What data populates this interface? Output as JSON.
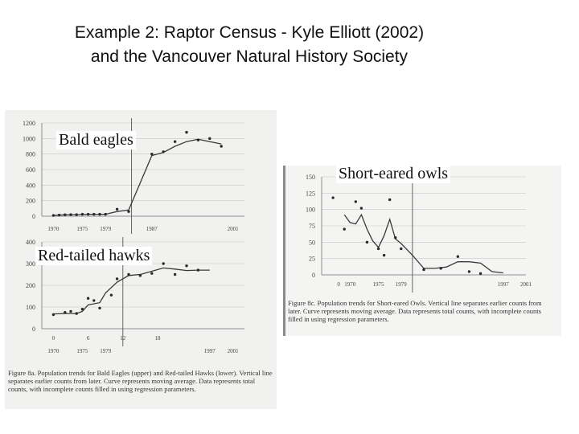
{
  "slide": {
    "title_line1": "Example 2: Raptor Census - Kyle Elliott (2002)",
    "title_line2": "and the Vancouver Natural History Society"
  },
  "labels": {
    "bald_eagles": "Bald eagles",
    "red_tailed_hawks": "Red-tailed hawks",
    "short_eared_owls": "Short-eared owls"
  },
  "captions": {
    "figure_8a": "Figure 8a. Population trends for Bald Eagles (upper) and Red-tailed Hawks (lower). Vertical line separates earlier counts from later. Curve represents moving average. Data represents total counts, with incomplete counts filled in using regression parameters.",
    "figure_8c": "Figure 8c. Population trends for Short-eared Owls. Vertical line separates earlier counts from later. Curve represents moving average. Data represents total counts, with incomplete counts filled in using regression parameters."
  },
  "colors": {
    "line": "#3a3a3a",
    "marker": "#2a2a2a",
    "grid": "#c8c8c8",
    "axis": "#777777"
  },
  "chart_data": [
    {
      "type": "line",
      "title": "Bald eagles",
      "yticks": [
        "1200",
        "1000",
        "800",
        "600",
        "400",
        "200",
        "0"
      ],
      "ytick_values": [
        1200,
        1000,
        800,
        600,
        400,
        200,
        0
      ],
      "xticks": [
        "1970",
        "1975",
        "1979",
        "1987",
        "2001"
      ],
      "xtick_values": [
        1970,
        1975,
        1979,
        1987,
        2001
      ],
      "ylim": [
        0,
        1200
      ],
      "divider_x": 1983.5,
      "series": [
        {
          "values": [
            {
              "x": 1970,
              "y": 10
            },
            {
              "x": 1971,
              "y": 15
            },
            {
              "x": 1972,
              "y": 18
            },
            {
              "x": 1973,
              "y": 20
            },
            {
              "x": 1974,
              "y": 20
            },
            {
              "x": 1975,
              "y": 22
            },
            {
              "x": 1976,
              "y": 25
            },
            {
              "x": 1977,
              "y": 25
            },
            {
              "x": 1978,
              "y": 25
            },
            {
              "x": 1979,
              "y": 25
            },
            {
              "x": 1981,
              "y": 60
            },
            {
              "x": 1983,
              "y": 80
            },
            {
              "x": 1987,
              "y": 780
            },
            {
              "x": 1989,
              "y": 820
            },
            {
              "x": 1991,
              "y": 900
            },
            {
              "x": 1993,
              "y": 960
            },
            {
              "x": 1995,
              "y": 990
            },
            {
              "x": 1997,
              "y": 960
            },
            {
              "x": 1999,
              "y": 930
            }
          ]
        }
      ],
      "points": [
        {
          "x": 1970,
          "y": 10
        },
        {
          "x": 1971,
          "y": 15
        },
        {
          "x": 1972,
          "y": 18
        },
        {
          "x": 1973,
          "y": 20
        },
        {
          "x": 1974,
          "y": 20
        },
        {
          "x": 1975,
          "y": 25
        },
        {
          "x": 1976,
          "y": 25
        },
        {
          "x": 1977,
          "y": 25
        },
        {
          "x": 1978,
          "y": 25
        },
        {
          "x": 1979,
          "y": 25
        },
        {
          "x": 1981,
          "y": 90
        },
        {
          "x": 1983,
          "y": 60
        },
        {
          "x": 1987,
          "y": 800
        },
        {
          "x": 1989,
          "y": 830
        },
        {
          "x": 1991,
          "y": 960
        },
        {
          "x": 1993,
          "y": 1080
        },
        {
          "x": 1995,
          "y": 980
        },
        {
          "x": 1997,
          "y": 1000
        },
        {
          "x": 1999,
          "y": 900
        }
      ]
    },
    {
      "type": "line",
      "title": "Red-tailed hawks",
      "yticks": [
        "400",
        "300",
        "200",
        "100",
        "0"
      ],
      "ytick_values": [
        400,
        300,
        200,
        100,
        0
      ],
      "xticks": [
        "1970",
        "1975",
        "1979",
        "1997",
        "2001"
      ],
      "xtick_values": [
        1970,
        1975,
        1979,
        1997,
        2001
      ],
      "xticks_secondary": [
        "0",
        "6",
        "12",
        "18"
      ],
      "xticks_secondary_values": [
        1970,
        1976,
        1982,
        1988
      ],
      "ylim": [
        0,
        400
      ],
      "divider_x": 1982,
      "series": [
        {
          "values": [
            {
              "x": 1970,
              "y": 68
            },
            {
              "x": 1972,
              "y": 70
            },
            {
              "x": 1974,
              "y": 70
            },
            {
              "x": 1975,
              "y": 80
            },
            {
              "x": 1976,
              "y": 110
            },
            {
              "x": 1978,
              "y": 120
            },
            {
              "x": 1979,
              "y": 165
            },
            {
              "x": 1981,
              "y": 215
            },
            {
              "x": 1983,
              "y": 245
            },
            {
              "x": 1985,
              "y": 250
            },
            {
              "x": 1987,
              "y": 265
            },
            {
              "x": 1989,
              "y": 280
            },
            {
              "x": 1991,
              "y": 275
            },
            {
              "x": 1993,
              "y": 268
            },
            {
              "x": 1995,
              "y": 270
            },
            {
              "x": 1997,
              "y": 270
            }
          ]
        }
      ],
      "points": [
        {
          "x": 1970,
          "y": 65
        },
        {
          "x": 1972,
          "y": 75
        },
        {
          "x": 1973,
          "y": 80
        },
        {
          "x": 1974,
          "y": 70
        },
        {
          "x": 1975,
          "y": 90
        },
        {
          "x": 1976,
          "y": 140
        },
        {
          "x": 1977,
          "y": 130
        },
        {
          "x": 1978,
          "y": 95
        },
        {
          "x": 1980,
          "y": 155
        },
        {
          "x": 1981,
          "y": 230
        },
        {
          "x": 1983,
          "y": 250
        },
        {
          "x": 1985,
          "y": 245
        },
        {
          "x": 1987,
          "y": 255
        },
        {
          "x": 1989,
          "y": 300
        },
        {
          "x": 1991,
          "y": 250
        },
        {
          "x": 1993,
          "y": 290
        },
        {
          "x": 1995,
          "y": 270
        }
      ]
    },
    {
      "type": "line",
      "title": "Short-eared owls",
      "yticks": [
        "150",
        "125",
        "100",
        "75",
        "50",
        "25",
        "0"
      ],
      "ytick_values": [
        150,
        125,
        100,
        75,
        50,
        25,
        0
      ],
      "xticks": [
        "1970",
        "1975",
        "1979",
        "1997",
        "2001"
      ],
      "xtick_values": [
        1970,
        1975,
        1979,
        1997,
        2001
      ],
      "xticks_secondary": [
        "0"
      ],
      "xticks_secondary_values": [
        1968
      ],
      "ylim": [
        0,
        150
      ],
      "divider_x": 1981,
      "series": [
        {
          "values": [
            {
              "x": 1969,
              "y": 92
            },
            {
              "x": 1970,
              "y": 80
            },
            {
              "x": 1971,
              "y": 78
            },
            {
              "x": 1972,
              "y": 92
            },
            {
              "x": 1973,
              "y": 70
            },
            {
              "x": 1974,
              "y": 52
            },
            {
              "x": 1975,
              "y": 42
            },
            {
              "x": 1976,
              "y": 60
            },
            {
              "x": 1977,
              "y": 85
            },
            {
              "x": 1978,
              "y": 55
            },
            {
              "x": 1979,
              "y": 48
            },
            {
              "x": 1981,
              "y": 30
            },
            {
              "x": 1983,
              "y": 10
            },
            {
              "x": 1985,
              "y": 10
            },
            {
              "x": 1987,
              "y": 12
            },
            {
              "x": 1989,
              "y": 20
            },
            {
              "x": 1991,
              "y": 20
            },
            {
              "x": 1993,
              "y": 18
            },
            {
              "x": 1995,
              "y": 5
            },
            {
              "x": 1997,
              "y": 3
            }
          ]
        }
      ],
      "points": [
        {
          "x": 1967,
          "y": 118
        },
        {
          "x": 1969,
          "y": 70
        },
        {
          "x": 1971,
          "y": 112
        },
        {
          "x": 1972,
          "y": 102
        },
        {
          "x": 1973,
          "y": 50
        },
        {
          "x": 1975,
          "y": 40
        },
        {
          "x": 1976,
          "y": 30
        },
        {
          "x": 1977,
          "y": 115
        },
        {
          "x": 1978,
          "y": 57
        },
        {
          "x": 1979,
          "y": 40
        },
        {
          "x": 1983,
          "y": 8
        },
        {
          "x": 1986,
          "y": 10
        },
        {
          "x": 1989,
          "y": 28
        },
        {
          "x": 1991,
          "y": 5
        },
        {
          "x": 1993,
          "y": 2
        }
      ]
    }
  ]
}
